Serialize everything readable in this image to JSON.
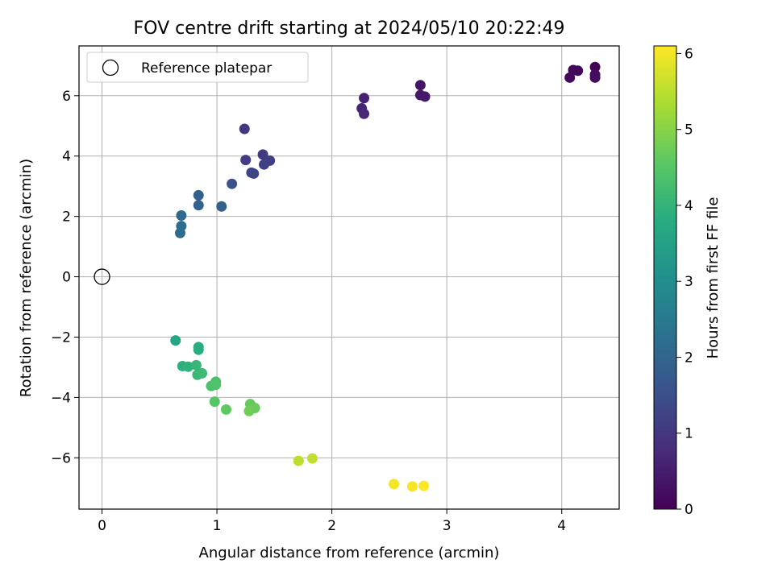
{
  "chart_data": {
    "type": "scatter",
    "title": "FOV centre drift starting at 2024/05/10 20:22:49",
    "xlabel": "Angular distance from reference (arcmin)",
    "ylabel": "Rotation from reference (arcmin)",
    "xlim": [
      -0.2,
      4.5
    ],
    "ylim": [
      -7.7,
      7.65
    ],
    "xticks": [
      0,
      1,
      2,
      3,
      4
    ],
    "yticks": [
      -6,
      -4,
      -2,
      0,
      2,
      4,
      6
    ],
    "grid": true,
    "legend": {
      "placement": "top-left",
      "entries": [
        "Reference platepar"
      ]
    },
    "reference_point": {
      "x": 0,
      "y": 0
    },
    "colorbar": {
      "label": "Hours from first FF file",
      "range": [
        0,
        6.1
      ],
      "ticks": [
        0,
        1,
        2,
        3,
        4,
        5,
        6
      ],
      "colormap": "viridis"
    },
    "points": [
      {
        "x": 4.29,
        "y": 6.95,
        "c": 0.05
      },
      {
        "x": 4.1,
        "y": 6.85,
        "c": 0.1
      },
      {
        "x": 4.14,
        "y": 6.83,
        "c": 0.12
      },
      {
        "x": 4.07,
        "y": 6.6,
        "c": 0.15
      },
      {
        "x": 4.29,
        "y": 6.6,
        "c": 0.18
      },
      {
        "x": 4.29,
        "y": 6.7,
        "c": 0.2
      },
      {
        "x": 2.77,
        "y": 6.35,
        "c": 0.35
      },
      {
        "x": 2.77,
        "y": 6.02,
        "c": 0.4
      },
      {
        "x": 2.81,
        "y": 5.97,
        "c": 0.45
      },
      {
        "x": 2.28,
        "y": 5.92,
        "c": 0.6
      },
      {
        "x": 2.26,
        "y": 5.58,
        "c": 0.65
      },
      {
        "x": 2.28,
        "y": 5.4,
        "c": 0.7
      },
      {
        "x": 1.24,
        "y": 4.9,
        "c": 1.0
      },
      {
        "x": 1.4,
        "y": 4.05,
        "c": 1.05
      },
      {
        "x": 1.25,
        "y": 3.87,
        "c": 1.1
      },
      {
        "x": 1.46,
        "y": 3.85,
        "c": 1.15
      },
      {
        "x": 1.41,
        "y": 3.72,
        "c": 1.2
      },
      {
        "x": 1.3,
        "y": 3.45,
        "c": 1.25
      },
      {
        "x": 1.32,
        "y": 3.42,
        "c": 1.3
      },
      {
        "x": 1.13,
        "y": 3.08,
        "c": 1.55
      },
      {
        "x": 0.84,
        "y": 2.7,
        "c": 1.9
      },
      {
        "x": 0.84,
        "y": 2.37,
        "c": 1.95
      },
      {
        "x": 1.04,
        "y": 2.33,
        "c": 1.85
      },
      {
        "x": 0.69,
        "y": 2.03,
        "c": 2.1
      },
      {
        "x": 0.69,
        "y": 1.68,
        "c": 2.15
      },
      {
        "x": 0.68,
        "y": 1.45,
        "c": 2.2
      },
      {
        "x": 0.64,
        "y": -2.11,
        "c": 3.6
      },
      {
        "x": 0.84,
        "y": -2.33,
        "c": 3.8
      },
      {
        "x": 0.84,
        "y": -2.42,
        "c": 3.85
      },
      {
        "x": 0.7,
        "y": -2.96,
        "c": 3.9
      },
      {
        "x": 0.75,
        "y": -2.98,
        "c": 3.95
      },
      {
        "x": 0.82,
        "y": -2.93,
        "c": 4.05
      },
      {
        "x": 0.83,
        "y": -3.25,
        "c": 4.1
      },
      {
        "x": 0.87,
        "y": -3.2,
        "c": 4.15
      },
      {
        "x": 0.99,
        "y": -3.48,
        "c": 4.3
      },
      {
        "x": 0.95,
        "y": -3.62,
        "c": 4.35
      },
      {
        "x": 0.99,
        "y": -3.58,
        "c": 4.4
      },
      {
        "x": 0.98,
        "y": -4.14,
        "c": 4.5
      },
      {
        "x": 1.08,
        "y": -4.4,
        "c": 4.6
      },
      {
        "x": 1.29,
        "y": -4.22,
        "c": 4.65
      },
      {
        "x": 1.33,
        "y": -4.35,
        "c": 4.7
      },
      {
        "x": 1.28,
        "y": -4.45,
        "c": 4.75
      },
      {
        "x": 1.71,
        "y": -6.1,
        "c": 5.5
      },
      {
        "x": 1.83,
        "y": -6.02,
        "c": 5.55
      },
      {
        "x": 2.54,
        "y": -6.87,
        "c": 6.0
      },
      {
        "x": 2.7,
        "y": -6.95,
        "c": 6.05
      },
      {
        "x": 2.8,
        "y": -6.93,
        "c": 6.1
      }
    ]
  }
}
